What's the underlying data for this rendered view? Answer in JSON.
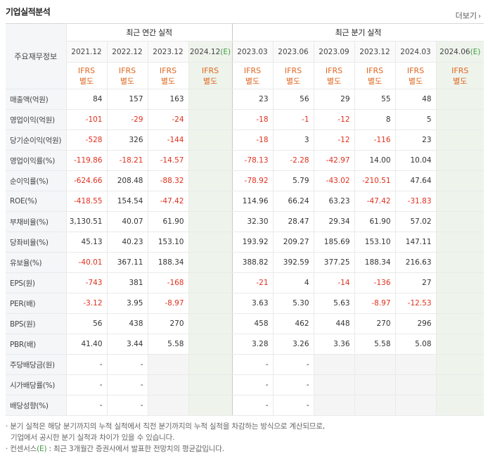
{
  "header": {
    "title": "기업실적분석",
    "more_label": "더보기",
    "more_icon": "chevron-right-icon"
  },
  "table": {
    "row_header_label": "주요재무정보",
    "annual_group_label": "최근 연간 실적",
    "quarter_group_label": "최근 분기 실적",
    "annual_periods": [
      "2021.12",
      "2022.12",
      "2023.12",
      "2024.12"
    ],
    "quarter_periods": [
      "2023.03",
      "2023.06",
      "2023.09",
      "2023.12",
      "2024.03",
      "2024.06"
    ],
    "estimate_suffix": "(E)",
    "ifrs_label": "IFRS",
    "ifrs_type": "별도",
    "rows": [
      {
        "label": "매출액(억원)",
        "annual": [
          "84",
          "157",
          "163",
          ""
        ],
        "quarter": [
          "23",
          "56",
          "29",
          "55",
          "48",
          ""
        ]
      },
      {
        "label": "영업이익(억원)",
        "annual": [
          "-101",
          "-29",
          "-24",
          ""
        ],
        "quarter": [
          "-18",
          "-1",
          "-12",
          "8",
          "5",
          ""
        ]
      },
      {
        "label": "당기순이익(억원)",
        "annual": [
          "-528",
          "326",
          "-144",
          ""
        ],
        "quarter": [
          "-18",
          "3",
          "-12",
          "-116",
          "23",
          ""
        ]
      },
      {
        "label": "영업이익률(%)",
        "annual": [
          "-119.86",
          "-18.21",
          "-14.57",
          ""
        ],
        "quarter": [
          "-78.13",
          "-2.28",
          "-42.97",
          "14.00",
          "10.04",
          ""
        ]
      },
      {
        "label": "순이익률(%)",
        "annual": [
          "-624.66",
          "208.48",
          "-88.32",
          ""
        ],
        "quarter": [
          "-78.92",
          "5.79",
          "-43.02",
          "-210.51",
          "47.64",
          ""
        ]
      },
      {
        "label": "ROE(%)",
        "annual": [
          "-418.55",
          "154.54",
          "-47.42",
          ""
        ],
        "quarter": [
          "114.96",
          "66.24",
          "63.23",
          "-47.42",
          "-31.83",
          ""
        ]
      },
      {
        "label": "부채비율(%)",
        "annual": [
          "3,130.51",
          "40.07",
          "61.90",
          ""
        ],
        "quarter": [
          "32.30",
          "28.47",
          "29.34",
          "61.90",
          "57.02",
          ""
        ]
      },
      {
        "label": "당좌비율(%)",
        "annual": [
          "45.13",
          "40.23",
          "153.10",
          ""
        ],
        "quarter": [
          "193.92",
          "209.27",
          "185.69",
          "153.10",
          "147.11",
          ""
        ]
      },
      {
        "label": "유보율(%)",
        "annual": [
          "-40.01",
          "367.11",
          "188.34",
          ""
        ],
        "quarter": [
          "388.82",
          "392.59",
          "377.25",
          "188.34",
          "216.63",
          ""
        ]
      },
      {
        "label": "EPS(원)",
        "annual": [
          "-743",
          "381",
          "-168",
          ""
        ],
        "quarter": [
          "-21",
          "4",
          "-14",
          "-136",
          "27",
          ""
        ]
      },
      {
        "label": "PER(배)",
        "annual": [
          "-3.12",
          "3.95",
          "-8.97",
          ""
        ],
        "quarter": [
          "3.63",
          "5.30",
          "5.63",
          "-8.97",
          "-12.53",
          ""
        ]
      },
      {
        "label": "BPS(원)",
        "annual": [
          "56",
          "438",
          "270",
          ""
        ],
        "quarter": [
          "458",
          "462",
          "448",
          "270",
          "296",
          ""
        ]
      },
      {
        "label": "PBR(배)",
        "annual": [
          "41.40",
          "3.44",
          "5.58",
          ""
        ],
        "quarter": [
          "3.28",
          "3.26",
          "3.36",
          "5.58",
          "5.08",
          ""
        ]
      },
      {
        "label": "주당배당금(원)",
        "annual": [
          "-",
          "-",
          "",
          ""
        ],
        "quarter": [
          "-",
          "-",
          "",
          "",
          "",
          ""
        ]
      },
      {
        "label": "시가배당률(%)",
        "annual": [
          "-",
          "-",
          "",
          ""
        ],
        "quarter": [
          "-",
          "-",
          "",
          "",
          "",
          ""
        ]
      },
      {
        "label": "배당성향(%)",
        "annual": [
          "-",
          "-",
          "",
          ""
        ],
        "quarter": [
          "-",
          "-",
          "",
          "",
          "",
          ""
        ]
      }
    ]
  },
  "notes": {
    "line1": "· 분기 실적은 해당 분기까지의 누적 실적에서 직전 분기까지의 누적 실적을 차감하는 방식으로 계산되므로,",
    "line2": "기업에서 공시한 분기 실적과 차이가 있을 수 있습니다.",
    "line3_prefix": "· 컨센서스",
    "line3_e": "(E)",
    "line3_suffix": " : 최근 3개월간 증권사에서 발표한 전망치의 평균값입니다."
  },
  "colors": {
    "negative": "#e0301e",
    "ifrs": "#e0661f",
    "estimate_bg": "#eef4ec",
    "estimate_mark": "#3f9a3f"
  }
}
